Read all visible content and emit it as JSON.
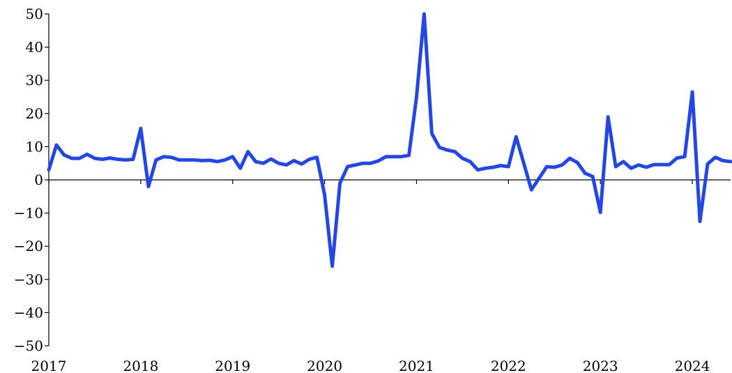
{
  "chart_data": {
    "type": "line",
    "title": "",
    "xlabel": "",
    "ylabel": "",
    "ylim": [
      -50,
      50
    ],
    "xlim": [
      "2017-01",
      "2024-06"
    ],
    "yticks": [
      -50,
      -40,
      -30,
      -20,
      -10,
      0,
      10,
      20,
      30,
      40,
      50
    ],
    "ytick_labels": [
      "−50",
      "−40",
      "−30",
      "−20",
      "−10",
      "0",
      "10",
      "20",
      "30",
      "40",
      "50"
    ],
    "xticks": [
      "2017-01",
      "2018-01",
      "2019-01",
      "2020-01",
      "2021-01",
      "2022-01",
      "2023-01",
      "2024-01"
    ],
    "xtick_labels": [
      "2017",
      "2018",
      "2019",
      "2020",
      "2021",
      "2022",
      "2023",
      "2024"
    ],
    "grid": false,
    "legend": "none",
    "colors": {
      "series": "#2347e0"
    },
    "series": [
      {
        "x": [
          "2017-01",
          "2017-02",
          "2017-03",
          "2017-04",
          "2017-05",
          "2017-06",
          "2017-07",
          "2017-08",
          "2017-09",
          "2017-10",
          "2017-11",
          "2017-12",
          "2018-01",
          "2018-02",
          "2018-03",
          "2018-04",
          "2018-05",
          "2018-06",
          "2018-07",
          "2018-08",
          "2018-09",
          "2018-10",
          "2018-11",
          "2018-12",
          "2019-01",
          "2019-02",
          "2019-03",
          "2019-04",
          "2019-05",
          "2019-06",
          "2019-07",
          "2019-08",
          "2019-09",
          "2019-10",
          "2019-11",
          "2019-12",
          "2020-01",
          "2020-02",
          "2020-03",
          "2020-04",
          "2020-05",
          "2020-06",
          "2020-07",
          "2020-08",
          "2020-09",
          "2020-10",
          "2020-11",
          "2020-12",
          "2021-01",
          "2021-02",
          "2021-03",
          "2021-04",
          "2021-05",
          "2021-06",
          "2021-07",
          "2021-08",
          "2021-09",
          "2021-10",
          "2021-11",
          "2021-12",
          "2022-01",
          "2022-02",
          "2022-03",
          "2022-04",
          "2022-05",
          "2022-06",
          "2022-07",
          "2022-08",
          "2022-09",
          "2022-10",
          "2022-11",
          "2022-12",
          "2023-01",
          "2023-02",
          "2023-03",
          "2023-04",
          "2023-05",
          "2023-06",
          "2023-07",
          "2023-08",
          "2023-09",
          "2023-10",
          "2023-11",
          "2023-12",
          "2024-01",
          "2024-02",
          "2024-03",
          "2024-04",
          "2024-05",
          "2024-06"
        ],
        "values": [
          3.0,
          10.5,
          7.5,
          6.5,
          6.5,
          7.7,
          6.5,
          6.2,
          6.6,
          6.2,
          6.0,
          6.2,
          15.5,
          -2.0,
          6.0,
          7.0,
          6.8,
          6.0,
          6.0,
          6.0,
          5.8,
          5.9,
          5.5,
          6.0,
          7.0,
          3.5,
          8.5,
          5.5,
          5.0,
          6.3,
          5.0,
          4.5,
          5.8,
          4.8,
          6.2,
          6.8,
          -4.5,
          -26.0,
          -1.0,
          4.0,
          4.5,
          5.0,
          5.0,
          5.7,
          7.0,
          7.0,
          7.0,
          7.4,
          25.0,
          50.0,
          14.0,
          9.8,
          9.0,
          8.5,
          6.5,
          5.5,
          3.0,
          3.5,
          3.8,
          4.3,
          4.0,
          13.0,
          5.0,
          -3.0,
          0.5,
          4.0,
          3.8,
          4.5,
          6.5,
          5.2,
          2.0,
          1.0,
          -9.8,
          19.0,
          4.0,
          5.5,
          3.5,
          4.5,
          3.8,
          4.6,
          4.6,
          4.6,
          6.6,
          7.0,
          26.5,
          -12.5,
          4.8,
          6.8,
          5.8,
          5.5
        ]
      }
    ]
  }
}
